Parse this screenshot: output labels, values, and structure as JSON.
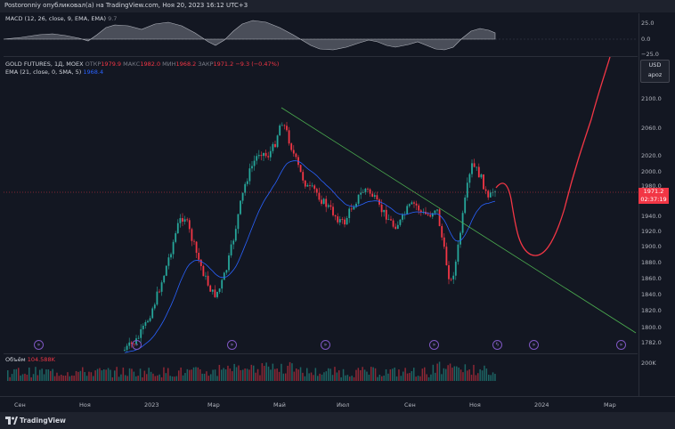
{
  "header": {
    "title": "Postoronniy опубликовал(а) на TradingView.com, Ноя 20, 2023 16:12 UTC+3"
  },
  "macd": {
    "legend_name": "MACD (12, 26, close, 9, EMA, EMA)",
    "legend_value": "9.7",
    "scale": [
      "25.0",
      "0.0",
      "−25.0"
    ]
  },
  "main": {
    "symbol": "GOLD FUTURES, 1Д, MOEX",
    "open_label": "ОТКР",
    "open_value": "1979.9",
    "high_label": "МАКС",
    "high_value": "1982.0",
    "low_label": "МИН",
    "low_value": "1968.2",
    "close_label": "ЗАКР",
    "close_value": "1971.2",
    "change": "−9.3 (−0.47%)",
    "ema_label": "EMA (21, close, 0, SMA, 5)",
    "ema_value": "1968.4",
    "currency": "USD",
    "currency_sub": "apoz",
    "price_tag": "1971.2",
    "countdown": "02:37:19",
    "scale": [
      "2100.0",
      "2060.0",
      "2020.0",
      "2000.0",
      "1980.0",
      "1940.0",
      "1920.0",
      "1900.0",
      "1880.0",
      "1860.0",
      "1840.0",
      "1820.0",
      "1800.0",
      "1782.0"
    ],
    "colors": {
      "up": "#26a69a",
      "down": "#f23645",
      "ema": "#2962ff",
      "trendline": "#4caf50",
      "projection": "#f23645"
    }
  },
  "volume": {
    "label": "Объём",
    "value": "104.588K",
    "scale": "200K"
  },
  "time_axis": [
    "Сен",
    "Ноя",
    "2023",
    "Мар",
    "Май",
    "Июл",
    "Сен",
    "Ноя",
    "2024",
    "Мар"
  ],
  "footer": {
    "brand": "TradingView"
  },
  "events": [
    "event-icon",
    "event-icon",
    "event-icon",
    "event-icon",
    "event-icon",
    "flash-icon",
    "event-icon",
    "event-icon"
  ]
}
